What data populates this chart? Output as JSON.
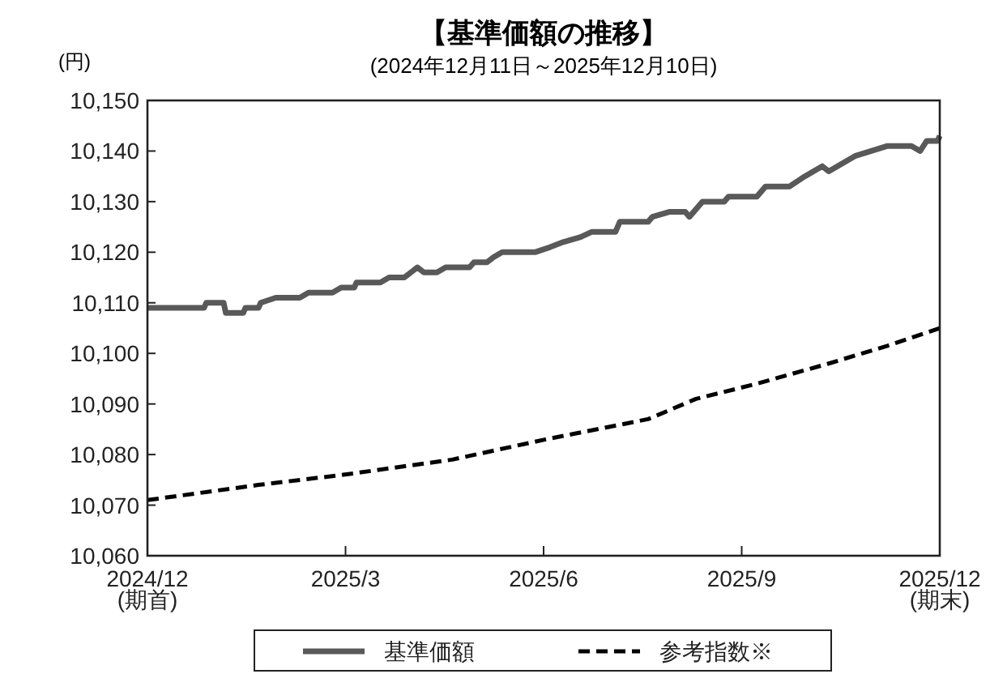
{
  "chart_data": {
    "type": "line",
    "title": "【基準価額の推移】",
    "subtitle": "(2024年12月11日～2025年12月10日)",
    "ylabel": "(円)",
    "xlim": [
      "2024-12-11",
      "2025-12-10"
    ],
    "xticks": [
      {
        "value": "2024-12-11",
        "label": "2024/12\n(期首)"
      },
      {
        "value": "2025-03-12",
        "label": "2025/3"
      },
      {
        "value": "2025-06-11",
        "label": "2025/6"
      },
      {
        "value": "2025-09-10",
        "label": "2025/9"
      },
      {
        "value": "2025-12-10",
        "label": "2025/12\n(期末)"
      }
    ],
    "ylim": [
      10060,
      10150
    ],
    "yticks": [
      {
        "value": 10060,
        "label": "10,060"
      },
      {
        "value": 10070,
        "label": "10,070"
      },
      {
        "value": 10080,
        "label": "10,080"
      },
      {
        "value": 10090,
        "label": "10,090"
      },
      {
        "value": 10100,
        "label": "10,100"
      },
      {
        "value": 10110,
        "label": "10,110"
      },
      {
        "value": 10120,
        "label": "10,120"
      },
      {
        "value": 10130,
        "label": "10,130"
      },
      {
        "value": 10140,
        "label": "10,140"
      },
      {
        "value": 10150,
        "label": "10,150"
      }
    ],
    "legend": "bottom",
    "grid": false,
    "series": [
      {
        "name": "基準価額",
        "color": "#595959",
        "line_style": "solid",
        "x": [
          "2024-12-11",
          "2025-01-06",
          "2025-01-07",
          "2025-01-15",
          "2025-01-16",
          "2025-01-24",
          "2025-01-25",
          "2025-01-31",
          "2025-02-01",
          "2025-02-08",
          "2025-02-19",
          "2025-02-23",
          "2025-03-06",
          "2025-03-10",
          "2025-03-16",
          "2025-03-17",
          "2025-03-28",
          "2025-04-01",
          "2025-04-08",
          "2025-04-14",
          "2025-04-17",
          "2025-04-23",
          "2025-04-27",
          "2025-05-08",
          "2025-05-10",
          "2025-05-16",
          "2025-05-19",
          "2025-05-23",
          "2025-06-07",
          "2025-06-14",
          "2025-06-20",
          "2025-06-28",
          "2025-07-03",
          "2025-07-14",
          "2025-07-16",
          "2025-07-29",
          "2025-07-31",
          "2025-08-08",
          "2025-08-15",
          "2025-08-17",
          "2025-08-23",
          "2025-09-02",
          "2025-09-04",
          "2025-09-17",
          "2025-09-21",
          "2025-10-02",
          "2025-10-09",
          "2025-10-17",
          "2025-10-20",
          "2025-11-01",
          "2025-11-16",
          "2025-11-27",
          "2025-12-01",
          "2025-12-04",
          "2025-12-09",
          "2025-12-10"
        ],
        "values": [
          10109,
          10109,
          10110,
          10110,
          10108,
          10108,
          10109,
          10109,
          10110,
          10111,
          10111,
          10112,
          10112,
          10113,
          10113,
          10114,
          10114,
          10115,
          10115,
          10117,
          10116,
          10116,
          10117,
          10117,
          10118,
          10118,
          10119,
          10120,
          10120,
          10121,
          10122,
          10123,
          10124,
          10124,
          10126,
          10126,
          10127,
          10128,
          10128,
          10127,
          10130,
          10130,
          10131,
          10131,
          10133,
          10133,
          10135,
          10137,
          10136,
          10139,
          10141,
          10141,
          10140,
          10142,
          10142,
          10143
        ]
      },
      {
        "name": "参考指数※",
        "color": "#000000",
        "line_style": "dashed",
        "x": [
          "2024-12-11",
          "2025-01-31",
          "2025-03-11",
          "2025-04-30",
          "2025-06-12",
          "2025-07-29",
          "2025-08-20",
          "2025-09-17",
          "2025-10-20",
          "2025-11-16",
          "2025-12-10"
        ],
        "values": [
          10071,
          10074,
          10076,
          10079,
          10083,
          10087,
          10091,
          10094,
          10098,
          10101.5,
          10105
        ]
      }
    ]
  }
}
